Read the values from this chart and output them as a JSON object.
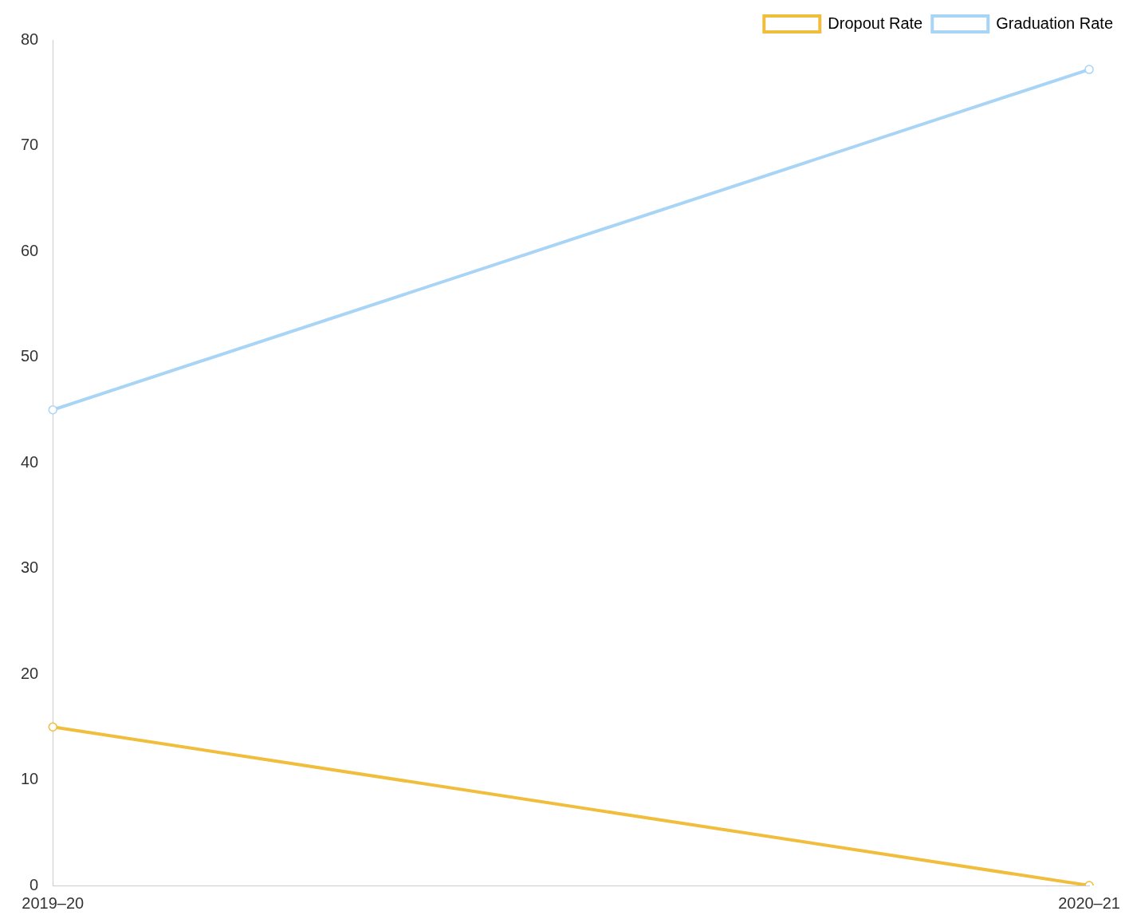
{
  "chart_data": {
    "type": "line",
    "categories": [
      "2019–20",
      "2020–21"
    ],
    "series": [
      {
        "name": "Dropout Rate",
        "color": "#f0be3c",
        "values": [
          15,
          0
        ]
      },
      {
        "name": "Graduation Rate",
        "color": "#a8d4f5",
        "values": [
          45,
          77.2
        ]
      }
    ],
    "ylim": [
      0,
      80
    ],
    "yticks": [
      0,
      10,
      20,
      30,
      40,
      50,
      60,
      70,
      80
    ],
    "grid": false,
    "legend": "top right",
    "marker": "circle",
    "line_style": "solid"
  }
}
